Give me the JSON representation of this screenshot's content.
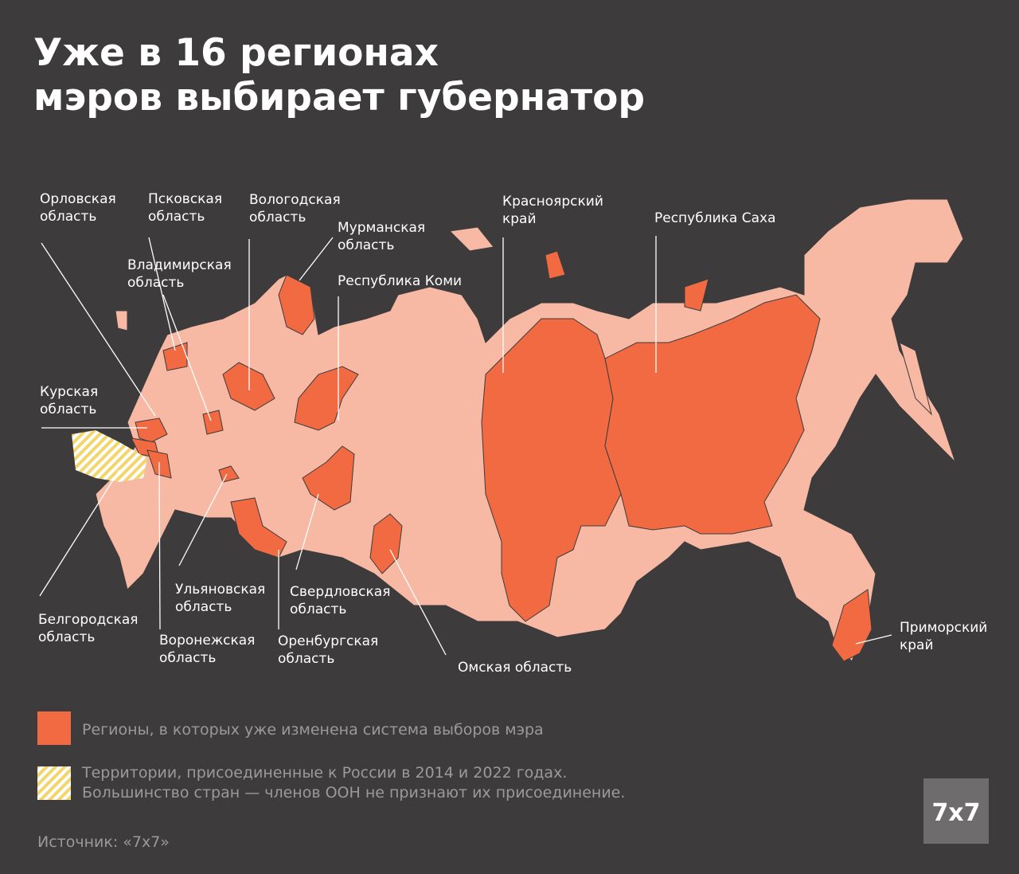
{
  "title": [
    "Уже в 16 регионах",
    "мэров выбирает губернатор"
  ],
  "labels": [
    {
      "lines": [
        "Орловская",
        "область"
      ]
    },
    {
      "lines": [
        "Псковская",
        "область"
      ]
    },
    {
      "lines": [
        "Вологодская",
        "область"
      ]
    },
    {
      "lines": [
        "Мурманская",
        "область"
      ]
    },
    {
      "lines": [
        "Красноярский",
        "край"
      ]
    },
    {
      "lines": [
        "Республика Саха"
      ]
    },
    {
      "lines": [
        "Владимирская",
        "область"
      ]
    },
    {
      "lines": [
        "Республика Коми"
      ]
    },
    {
      "lines": [
        "Курская",
        "область"
      ]
    },
    {
      "lines": [
        "Ульяновская",
        "область"
      ]
    },
    {
      "lines": [
        "Свердловская",
        "область"
      ]
    },
    {
      "lines": [
        "Белгородская",
        "область"
      ]
    },
    {
      "lines": [
        "Воронежская",
        "область"
      ]
    },
    {
      "lines": [
        "Оренбургская",
        "область"
      ]
    },
    {
      "lines": [
        "Омская область"
      ]
    },
    {
      "lines": [
        "Приморский",
        "край"
      ]
    }
  ],
  "legend": [
    {
      "lines": [
        "Регионы, в которых уже изменена система выборов мэра"
      ]
    },
    {
      "lines": [
        "Территории, присоединенные к России в 2014 и 2022 годах.",
        "Большинство стран — членов ООН не признают их присоединение."
      ]
    }
  ],
  "source": "Источник: «7x7»",
  "logo": "7x7"
}
